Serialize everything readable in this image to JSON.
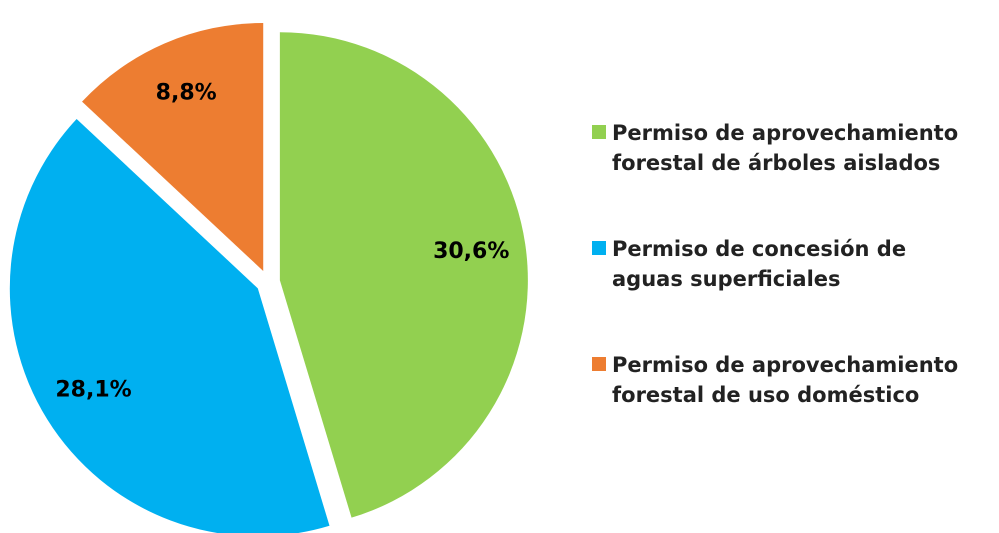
{
  "chart_data": {
    "type": "pie",
    "categories": [
      "Permiso de aprovechamiento\nforestal de árboles aislados",
      "Permiso de concesión de\naguas superficiales",
      "Permiso de aprovechamiento\nforestal de uso doméstico"
    ],
    "values": [
      30.6,
      28.1,
      8.8
    ],
    "value_labels": [
      "30,6%",
      "28,1%",
      "8,8%"
    ],
    "colors": [
      "#92d050",
      "#00b0f0",
      "#ed7d31"
    ],
    "legend": "right"
  }
}
